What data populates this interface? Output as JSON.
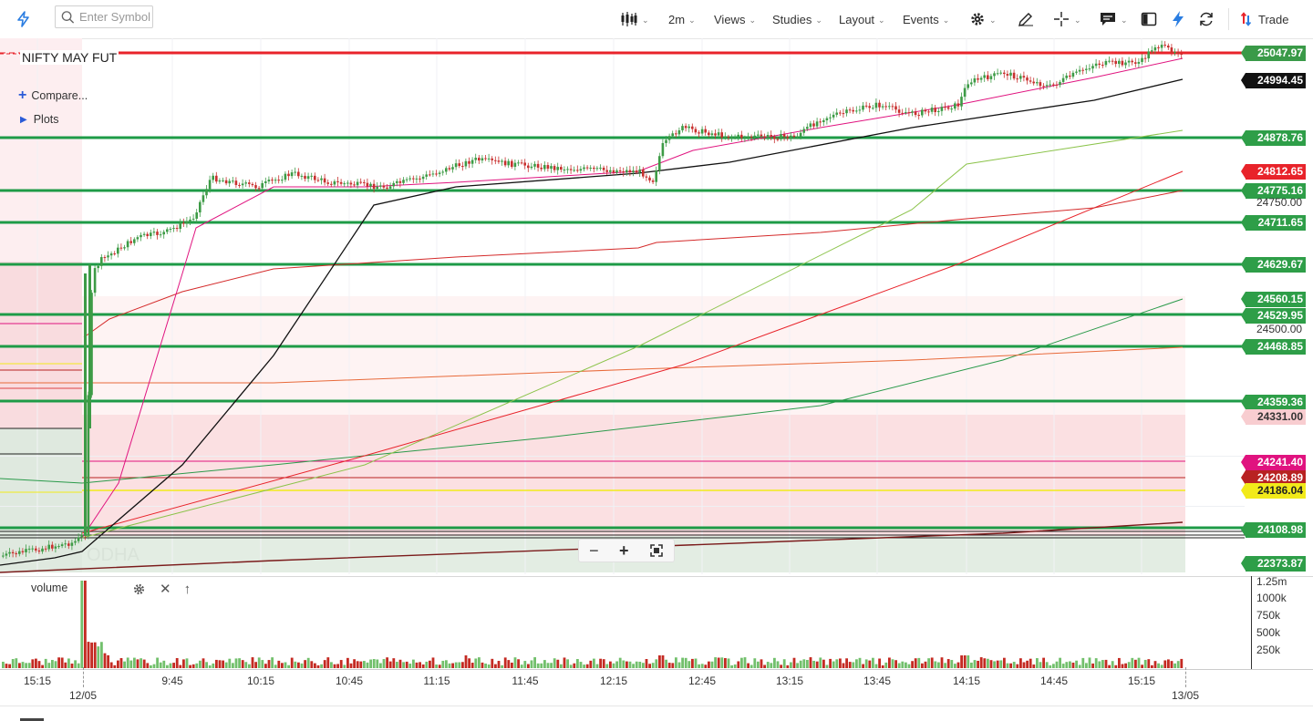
{
  "toolbar": {
    "search_placeholder": "Enter Symbol",
    "interval": "2m",
    "views": "Views",
    "studies": "Studies",
    "layout": "Layout",
    "events": "Events",
    "trade": "Trade"
  },
  "chart": {
    "symbol": "NIFTY MAY FUT",
    "compare": "Compare...",
    "plots": "Plots",
    "watermark": "ODHA",
    "price_labels": [
      {
        "text": "25047.97",
        "bg": "#3a9a48",
        "fg": "#ffffff",
        "price": 25047.97
      },
      {
        "text": "24994.45",
        "bg": "#111111",
        "fg": "#ffffff",
        "price": 24994.45
      },
      {
        "text": "24878.76",
        "bg": "#2e9e48",
        "fg": "#ffffff",
        "price": 24878.76
      },
      {
        "text": "24812.65",
        "bg": "#e8232a",
        "fg": "#ffffff",
        "price": 24812.65
      },
      {
        "text": "24775.16",
        "bg": "#2e9e48",
        "fg": "#ffffff",
        "price": 24775.16
      },
      {
        "text": "24711.65",
        "bg": "#2e9e48",
        "fg": "#ffffff",
        "price": 24711.65
      },
      {
        "text": "24629.67",
        "bg": "#2e9e48",
        "fg": "#ffffff",
        "price": 24629.67
      },
      {
        "text": "24560.15",
        "bg": "#2e9e48",
        "fg": "#ffffff",
        "price": 24560.15
      },
      {
        "text": "24529.95",
        "bg": "#2e9e48",
        "fg": "#ffffff",
        "price": 24529.95
      },
      {
        "text": "24468.85",
        "bg": "#2e9e48",
        "fg": "#ffffff",
        "price": 24468.85
      },
      {
        "text": "24359.36",
        "bg": "#2e9e48",
        "fg": "#ffffff",
        "price": 24359.36
      },
      {
        "text": "24331.00",
        "bg": "#f8cdd0",
        "fg": "#333333",
        "price": 24331.0
      },
      {
        "text": "24241.40",
        "bg": "#e0137f",
        "fg": "#ffffff",
        "price": 24241.4
      },
      {
        "text": "24208.89",
        "bg": "#b82222",
        "fg": "#ffffff",
        "price": 24208.89
      },
      {
        "text": "24186.04",
        "bg": "#f2ea1a",
        "fg": "#222222",
        "price": 24186.04
      },
      {
        "text": "24108.98",
        "bg": "#2e9e48",
        "fg": "#ffffff",
        "price": 24108.98
      },
      {
        "text": "22373.87",
        "bg": "#2e9e48",
        "fg": "#ffffff",
        "price": 22373.87
      }
    ],
    "axis_ticks": [
      "24750.00",
      "24500.00"
    ],
    "horizontal_levels": [
      24878.76,
      24775.16,
      24711.65,
      24629.67,
      24529.95,
      24468.85,
      24359.36,
      24108.98
    ],
    "time_labels": [
      {
        "t": "15:15",
        "x": 41
      },
      {
        "t": "9:45",
        "x": 189
      },
      {
        "t": "10:15",
        "x": 286
      },
      {
        "t": "10:45",
        "x": 383
      },
      {
        "t": "11:15",
        "x": 479
      },
      {
        "t": "11:45",
        "x": 576
      },
      {
        "t": "12:15",
        "x": 673
      },
      {
        "t": "12:45",
        "x": 770
      },
      {
        "t": "13:15",
        "x": 866
      },
      {
        "t": "13:45",
        "x": 962
      },
      {
        "t": "14:15",
        "x": 1060
      },
      {
        "t": "14:45",
        "x": 1156
      },
      {
        "t": "15:15",
        "x": 1252
      }
    ],
    "date_labels": [
      {
        "t": "12/05",
        "x": 91
      },
      {
        "t": "13/05",
        "x": 1300
      }
    ]
  },
  "volume": {
    "title": "volume",
    "ticks": [
      "1.25m",
      "1000k",
      "750k",
      "500k",
      "250k"
    ]
  },
  "colors": {
    "up": "#3d9b46",
    "down": "#c8302f",
    "level": "#1e9b47",
    "resistance": "#e8232a"
  }
}
